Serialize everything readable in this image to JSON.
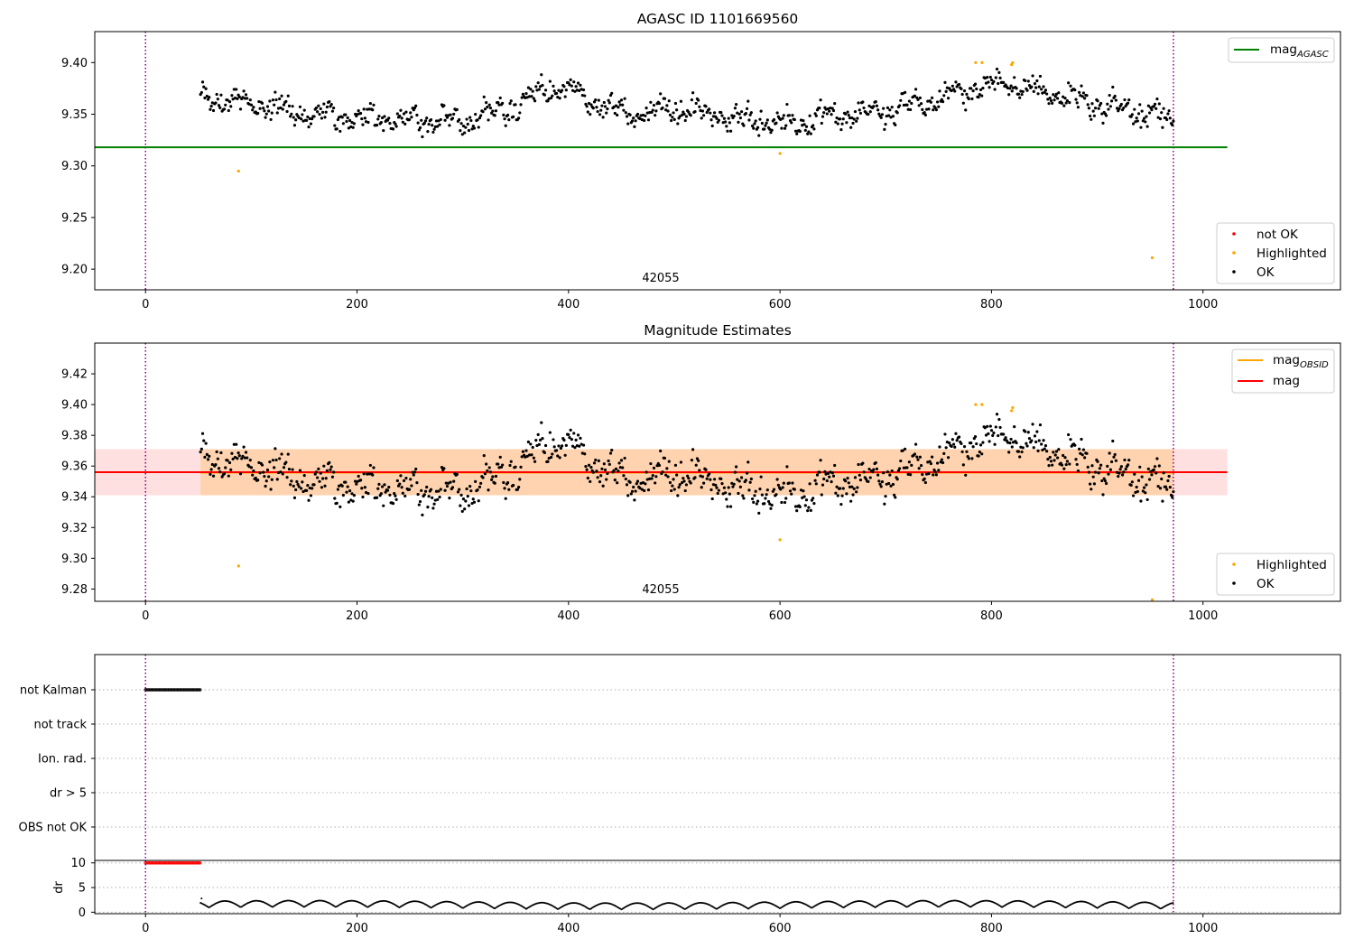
{
  "chart_data": [
    {
      "type": "scatter",
      "title": "AGASC ID 1101669560",
      "xlabel": "",
      "ylabel": "",
      "xlim": [
        -48,
        1130
      ],
      "ylim": [
        9.18,
        9.43
      ],
      "xticks": [
        0,
        200,
        400,
        600,
        800,
        1000
      ],
      "xtick_labels": [
        "0",
        "200",
        "400",
        "600",
        "800",
        "1000"
      ],
      "yticks": [
        9.2,
        9.25,
        9.3,
        9.35,
        9.4
      ],
      "ytick_labels": [
        "9.20",
        "9.25",
        "9.30",
        "9.35",
        "9.40"
      ],
      "vlines": [
        0,
        972
      ],
      "annotation": "42055",
      "lines": [
        {
          "name": "mag_AGASC",
          "x": [
            -50,
            1023
          ],
          "y": [
            9.318,
            9.318
          ],
          "color": "#008000"
        }
      ],
      "series": [
        {
          "name": "not OK",
          "color": "#ff0000",
          "x": [],
          "y": []
        },
        {
          "name": "Highlighted",
          "color": "#ffa500",
          "x": [
            88,
            600,
            785,
            791,
            819,
            820,
            952
          ],
          "y": [
            9.295,
            9.312,
            9.4,
            9.4,
            9.398,
            9.4,
            9.211
          ]
        },
        {
          "name": "OK",
          "color": "#000000",
          "description": "about 900 points from x=52 to x=972, y between 9.32 and 9.39 following a slow wave",
          "trend_x": [
            52,
            100,
            150,
            200,
            250,
            300,
            350,
            380,
            400,
            450,
            500,
            550,
            600,
            650,
            700,
            750,
            800,
            850,
            900,
            950,
            972
          ],
          "trend_y": [
            9.368,
            9.36,
            9.35,
            9.347,
            9.345,
            9.343,
            9.357,
            9.375,
            9.373,
            9.352,
            9.355,
            9.348,
            9.34,
            9.35,
            9.352,
            9.365,
            9.38,
            9.372,
            9.36,
            9.35,
            9.345
          ]
        }
      ],
      "legend_upper": {
        "position": "top-right",
        "entries": [
          {
            "label": "mag",
            "sub": "AGASC",
            "color": "#008000"
          }
        ]
      },
      "legend_lower": {
        "position": "bottom-right",
        "entries": [
          {
            "label": "not OK",
            "color": "#ff0000"
          },
          {
            "label": "Highlighted",
            "color": "#ffa500"
          },
          {
            "label": "OK",
            "color": "#000000"
          }
        ]
      }
    },
    {
      "type": "scatter",
      "title": "Magnitude Estimates",
      "xlabel": "",
      "ylabel": "",
      "xlim": [
        -48,
        1130
      ],
      "ylim": [
        9.272,
        9.44
      ],
      "xticks": [
        0,
        200,
        400,
        600,
        800,
        1000
      ],
      "xtick_labels": [
        "0",
        "200",
        "400",
        "600",
        "800",
        "1000"
      ],
      "yticks": [
        9.28,
        9.3,
        9.32,
        9.34,
        9.36,
        9.38,
        9.4,
        9.42
      ],
      "ytick_labels": [
        "9.28",
        "9.30",
        "9.32",
        "9.34",
        "9.36",
        "9.38",
        "9.40",
        "9.42"
      ],
      "vlines": [
        0,
        972
      ],
      "annotation": "42055",
      "bands": [
        {
          "name": "mag band",
          "x": [
            -50,
            1023
          ],
          "y": [
            9.341,
            9.371
          ],
          "color": "#ff0000",
          "alpha": 0.12
        },
        {
          "name": "mag_OBSID band",
          "x": [
            52,
            972
          ],
          "y": [
            9.341,
            9.371
          ],
          "color": "#ffa500",
          "alpha": 0.22
        }
      ],
      "lines": [
        {
          "name": "mag_OBSID",
          "x": [
            52,
            972
          ],
          "y": [
            9.3557,
            9.3557
          ],
          "color": "#ffa500"
        },
        {
          "name": "mag",
          "x": [
            -50,
            1023
          ],
          "y": [
            9.356,
            9.356
          ],
          "color": "#ff0000"
        }
      ],
      "series": [
        {
          "name": "Highlighted",
          "color": "#ffa500",
          "x": [
            88,
            600,
            785,
            791,
            819,
            820,
            952
          ],
          "y": [
            9.295,
            9.312,
            9.4,
            9.4,
            9.396,
            9.398,
            9.273
          ]
        },
        {
          "name": "OK",
          "color": "#000000",
          "description": "same points as upper panel",
          "trend_x": [
            52,
            100,
            150,
            200,
            250,
            300,
            350,
            380,
            400,
            450,
            500,
            550,
            600,
            650,
            700,
            750,
            800,
            850,
            900,
            950,
            972
          ],
          "trend_y": [
            9.368,
            9.36,
            9.35,
            9.347,
            9.345,
            9.343,
            9.357,
            9.375,
            9.373,
            9.352,
            9.355,
            9.348,
            9.34,
            9.35,
            9.352,
            9.365,
            9.38,
            9.372,
            9.36,
            9.35,
            9.345
          ]
        }
      ],
      "legend_upper": {
        "position": "top-right",
        "entries": [
          {
            "label": "mag",
            "sub": "OBSID",
            "color": "#ffa500"
          },
          {
            "label": "mag",
            "sub": "",
            "color": "#ff0000"
          }
        ]
      },
      "legend_lower": {
        "position": "bottom-right",
        "entries": [
          {
            "label": "Highlighted",
            "color": "#ffa500"
          },
          {
            "label": "OK",
            "color": "#000000"
          }
        ]
      }
    },
    {
      "type": "scatter",
      "title": "",
      "xlim": [
        -48,
        1130
      ],
      "categories": [
        "not Kalman",
        "not track",
        "Ion. rad.",
        "dr > 5",
        "OBS not OK"
      ],
      "vlines": [
        0,
        972
      ],
      "flag_series": [
        {
          "name": "not Kalman",
          "x_range": [
            0,
            52
          ],
          "color": "#000000"
        }
      ]
    },
    {
      "type": "scatter",
      "title": "",
      "ylabel": "dr",
      "xlim": [
        -48,
        1130
      ],
      "ylim": [
        -0.3,
        10.5
      ],
      "yticks": [
        0,
        5,
        10
      ],
      "ytick_labels": [
        "0",
        "5",
        "10"
      ],
      "xticks": [
        0,
        200,
        400,
        600,
        800,
        1000
      ],
      "xtick_labels": [
        "0",
        "200",
        "400",
        "600",
        "800",
        "1000"
      ],
      "vlines": [
        0,
        972
      ],
      "series": [
        {
          "name": "dr not OK",
          "color": "#ff0000",
          "x_range": [
            0,
            52
          ],
          "y": 10
        },
        {
          "name": "dr",
          "color": "#000000",
          "x_range": [
            52,
            972
          ],
          "y_range": [
            0,
            2.8
          ]
        }
      ]
    }
  ]
}
